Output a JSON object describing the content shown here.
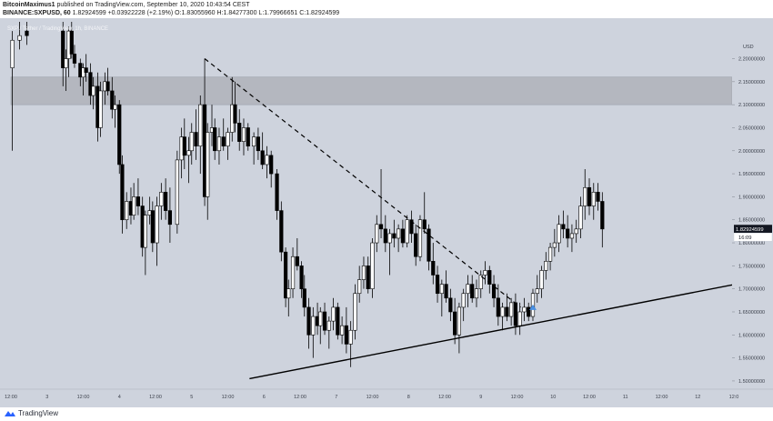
{
  "header": {
    "author": "BitcoinMaximus1",
    "published_text": "published on TradingView.com, September 10, 2020 10:43:54 CEST",
    "symbol": "BINANCE:SXPUSD, 60",
    "last": "1.82924599",
    "change": "+0.03922228 (+2.19%)",
    "o_label": "O:",
    "o_value": "1.83055960",
    "h_label": "H:",
    "h_value": "1.84277300",
    "l_label": "L:",
    "l_value": "1.79966651",
    "c_label": "C:",
    "c_value": "1.82924599"
  },
  "legend_text": "SXP / Tether / TradingView, 1h, BINANCE",
  "footer": {
    "brand": "TradingView"
  },
  "colors": {
    "background": "#ced3dd",
    "candle": "#000000",
    "zone": "#b4b7bf",
    "price_label_bg": "#131722",
    "marker": "#4a90e2"
  },
  "chart_data": {
    "type": "candlestick",
    "x_axis": {
      "ticks": [
        "12:00",
        "3",
        "12:00",
        "4",
        "12:00",
        "5",
        "12:00",
        "6",
        "12:00",
        "7",
        "12:00",
        "8",
        "12:00",
        "9",
        "12:00",
        "10",
        "12:00",
        "11",
        "12:00",
        "12",
        "12:0"
      ]
    },
    "y_axis": {
      "range": [
        1.49,
        2.28
      ],
      "ticks": [
        "2.20000000",
        "2.15000000",
        "2.10000000",
        "2.05000000",
        "2.00000000",
        "1.95000000",
        "1.90000000",
        "1.85000000",
        "1.80000000",
        "1.75000000",
        "1.70000000",
        "1.65000000",
        "1.60000000",
        "1.55000000",
        "1.50000000"
      ],
      "unit": "USD"
    },
    "current_price": {
      "value": 1.82924599,
      "label": "1.82924599",
      "countdown": "16:09"
    },
    "resistance_zone": {
      "y_low": 2.1,
      "y_high": 2.16
    },
    "descending_trendline": {
      "start": {
        "day": 5.18,
        "price": 2.2
      },
      "end": {
        "day": 9.55,
        "price": 1.66
      },
      "style": "dashed"
    },
    "ascending_trendline": {
      "start": {
        "day": 5.8,
        "price": 1.505
      },
      "end": {
        "day": 12.85,
        "price": 1.72
      },
      "style": "solid"
    },
    "breakout_marker": {
      "day": 9.72,
      "price": 1.66
    },
    "candles": [
      {
        "t": 2.52,
        "o": 2.18,
        "h": 2.26,
        "l": 2.0,
        "c": 2.24
      },
      {
        "t": 2.62,
        "o": 2.24,
        "h": 2.28,
        "l": 2.22,
        "c": 2.25
      },
      {
        "t": 2.72,
        "o": 2.26,
        "h": 2.28,
        "l": 2.23,
        "c": 2.25
      },
      {
        "t": 3.22,
        "o": 2.26,
        "h": 2.28,
        "l": 2.14,
        "c": 2.18
      },
      {
        "t": 3.26,
        "o": 2.18,
        "h": 2.22,
        "l": 2.13,
        "c": 2.2
      },
      {
        "t": 3.3,
        "o": 2.2,
        "h": 2.27,
        "l": 2.16,
        "c": 2.26
      },
      {
        "t": 3.34,
        "o": 2.26,
        "h": 2.28,
        "l": 2.2,
        "c": 2.21
      },
      {
        "t": 3.38,
        "o": 2.21,
        "h": 2.23,
        "l": 2.18,
        "c": 2.19
      },
      {
        "t": 3.46,
        "o": 2.19,
        "h": 2.2,
        "l": 2.14,
        "c": 2.16
      },
      {
        "t": 3.5,
        "o": 2.16,
        "h": 2.19,
        "l": 2.12,
        "c": 2.18
      },
      {
        "t": 3.54,
        "o": 2.18,
        "h": 2.21,
        "l": 2.15,
        "c": 2.17
      },
      {
        "t": 3.6,
        "o": 2.17,
        "h": 2.19,
        "l": 2.1,
        "c": 2.12
      },
      {
        "t": 3.64,
        "o": 2.12,
        "h": 2.16,
        "l": 2.09,
        "c": 2.14
      },
      {
        "t": 3.7,
        "o": 2.14,
        "h": 2.17,
        "l": 2.02,
        "c": 2.05
      },
      {
        "t": 3.74,
        "o": 2.05,
        "h": 2.15,
        "l": 2.03,
        "c": 2.13
      },
      {
        "t": 3.8,
        "o": 2.13,
        "h": 2.17,
        "l": 2.1,
        "c": 2.15
      },
      {
        "t": 3.84,
        "o": 2.15,
        "h": 2.18,
        "l": 2.12,
        "c": 2.13
      },
      {
        "t": 3.9,
        "o": 2.13,
        "h": 2.16,
        "l": 2.07,
        "c": 2.09
      },
      {
        "t": 3.94,
        "o": 2.09,
        "h": 2.12,
        "l": 2.05,
        "c": 2.1
      },
      {
        "t": 4.0,
        "o": 2.1,
        "h": 2.11,
        "l": 1.95,
        "c": 1.97
      },
      {
        "t": 4.04,
        "o": 1.97,
        "h": 1.99,
        "l": 1.82,
        "c": 1.85
      },
      {
        "t": 4.1,
        "o": 1.85,
        "h": 1.91,
        "l": 1.83,
        "c": 1.89
      },
      {
        "t": 4.16,
        "o": 1.89,
        "h": 1.92,
        "l": 1.84,
        "c": 1.86
      },
      {
        "t": 4.2,
        "o": 1.86,
        "h": 1.93,
        "l": 1.85,
        "c": 1.9
      },
      {
        "t": 4.26,
        "o": 1.9,
        "h": 1.94,
        "l": 1.86,
        "c": 1.88
      },
      {
        "t": 4.32,
        "o": 1.88,
        "h": 1.9,
        "l": 1.77,
        "c": 1.79
      },
      {
        "t": 4.36,
        "o": 1.79,
        "h": 1.87,
        "l": 1.73,
        "c": 1.86
      },
      {
        "t": 4.42,
        "o": 1.86,
        "h": 1.9,
        "l": 1.84,
        "c": 1.87
      },
      {
        "t": 4.46,
        "o": 1.87,
        "h": 1.89,
        "l": 1.78,
        "c": 1.8
      },
      {
        "t": 4.52,
        "o": 1.8,
        "h": 1.9,
        "l": 1.75,
        "c": 1.88
      },
      {
        "t": 4.58,
        "o": 1.88,
        "h": 1.93,
        "l": 1.85,
        "c": 1.91
      },
      {
        "t": 4.64,
        "o": 1.91,
        "h": 1.94,
        "l": 1.85,
        "c": 1.87
      },
      {
        "t": 4.7,
        "o": 1.87,
        "h": 1.92,
        "l": 1.8,
        "c": 1.84
      },
      {
        "t": 4.8,
        "o": 1.84,
        "h": 2.0,
        "l": 1.82,
        "c": 1.98
      },
      {
        "t": 4.86,
        "o": 1.98,
        "h": 2.05,
        "l": 1.94,
        "c": 2.03
      },
      {
        "t": 4.9,
        "o": 2.03,
        "h": 2.07,
        "l": 1.96,
        "c": 1.99
      },
      {
        "t": 4.96,
        "o": 1.99,
        "h": 2.03,
        "l": 1.93,
        "c": 2.0
      },
      {
        "t": 5.0,
        "o": 2.0,
        "h": 2.06,
        "l": 1.97,
        "c": 2.04
      },
      {
        "t": 5.06,
        "o": 2.04,
        "h": 2.09,
        "l": 1.98,
        "c": 2.01
      },
      {
        "t": 5.12,
        "o": 2.01,
        "h": 2.12,
        "l": 1.95,
        "c": 2.1
      },
      {
        "t": 5.18,
        "o": 2.1,
        "h": 2.2,
        "l": 1.88,
        "c": 1.9
      },
      {
        "t": 5.22,
        "o": 1.9,
        "h": 2.06,
        "l": 1.85,
        "c": 2.04
      },
      {
        "t": 5.28,
        "o": 2.04,
        "h": 2.1,
        "l": 2.01,
        "c": 2.05
      },
      {
        "t": 5.32,
        "o": 2.05,
        "h": 2.07,
        "l": 1.98,
        "c": 2.0
      },
      {
        "t": 5.38,
        "o": 2.0,
        "h": 2.05,
        "l": 1.97,
        "c": 2.03
      },
      {
        "t": 5.44,
        "o": 2.03,
        "h": 2.07,
        "l": 2.0,
        "c": 2.01
      },
      {
        "t": 5.5,
        "o": 2.01,
        "h": 2.05,
        "l": 1.98,
        "c": 2.04
      },
      {
        "t": 5.56,
        "o": 2.04,
        "h": 2.16,
        "l": 2.02,
        "c": 2.1
      },
      {
        "t": 5.6,
        "o": 2.1,
        "h": 2.15,
        "l": 2.04,
        "c": 2.06
      },
      {
        "t": 5.66,
        "o": 2.06,
        "h": 2.09,
        "l": 2.0,
        "c": 2.02
      },
      {
        "t": 5.72,
        "o": 2.02,
        "h": 2.07,
        "l": 1.99,
        "c": 2.05
      },
      {
        "t": 5.78,
        "o": 2.05,
        "h": 2.06,
        "l": 2.0,
        "c": 2.01
      },
      {
        "t": 5.86,
        "o": 2.01,
        "h": 2.04,
        "l": 1.97,
        "c": 2.03
      },
      {
        "t": 5.92,
        "o": 2.03,
        "h": 2.05,
        "l": 1.98,
        "c": 2.0
      },
      {
        "t": 5.98,
        "o": 2.0,
        "h": 2.04,
        "l": 1.96,
        "c": 1.97
      },
      {
        "t": 6.04,
        "o": 1.97,
        "h": 2.01,
        "l": 1.94,
        "c": 1.99
      },
      {
        "t": 6.1,
        "o": 1.99,
        "h": 2.0,
        "l": 1.92,
        "c": 1.95
      },
      {
        "t": 6.18,
        "o": 1.95,
        "h": 1.96,
        "l": 1.85,
        "c": 1.87
      },
      {
        "t": 6.24,
        "o": 1.87,
        "h": 1.89,
        "l": 1.76,
        "c": 1.78
      },
      {
        "t": 6.3,
        "o": 1.78,
        "h": 1.79,
        "l": 1.66,
        "c": 1.68
      },
      {
        "t": 6.34,
        "o": 1.68,
        "h": 1.72,
        "l": 1.64,
        "c": 1.7
      },
      {
        "t": 6.4,
        "o": 1.7,
        "h": 1.79,
        "l": 1.68,
        "c": 1.77
      },
      {
        "t": 6.46,
        "o": 1.77,
        "h": 1.81,
        "l": 1.74,
        "c": 1.75
      },
      {
        "t": 6.52,
        "o": 1.75,
        "h": 1.76,
        "l": 1.68,
        "c": 1.7
      },
      {
        "t": 6.56,
        "o": 1.7,
        "h": 1.73,
        "l": 1.64,
        "c": 1.66
      },
      {
        "t": 6.62,
        "o": 1.66,
        "h": 1.68,
        "l": 1.57,
        "c": 1.6
      },
      {
        "t": 6.68,
        "o": 1.6,
        "h": 1.66,
        "l": 1.55,
        "c": 1.64
      },
      {
        "t": 6.74,
        "o": 1.64,
        "h": 1.67,
        "l": 1.6,
        "c": 1.62
      },
      {
        "t": 6.78,
        "o": 1.62,
        "h": 1.66,
        "l": 1.58,
        "c": 1.65
      },
      {
        "t": 6.84,
        "o": 1.65,
        "h": 1.67,
        "l": 1.6,
        "c": 1.61
      },
      {
        "t": 6.9,
        "o": 1.61,
        "h": 1.64,
        "l": 1.57,
        "c": 1.63
      },
      {
        "t": 6.96,
        "o": 1.63,
        "h": 1.68,
        "l": 1.61,
        "c": 1.66
      },
      {
        "t": 7.02,
        "o": 1.66,
        "h": 1.67,
        "l": 1.59,
        "c": 1.6
      },
      {
        "t": 7.08,
        "o": 1.6,
        "h": 1.64,
        "l": 1.58,
        "c": 1.62
      },
      {
        "t": 7.14,
        "o": 1.62,
        "h": 1.66,
        "l": 1.56,
        "c": 1.58
      },
      {
        "t": 7.2,
        "o": 1.58,
        "h": 1.63,
        "l": 1.53,
        "c": 1.61
      },
      {
        "t": 7.26,
        "o": 1.61,
        "h": 1.71,
        "l": 1.59,
        "c": 1.69
      },
      {
        "t": 7.32,
        "o": 1.69,
        "h": 1.75,
        "l": 1.67,
        "c": 1.72
      },
      {
        "t": 7.38,
        "o": 1.72,
        "h": 1.77,
        "l": 1.7,
        "c": 1.75
      },
      {
        "t": 7.44,
        "o": 1.75,
        "h": 1.77,
        "l": 1.69,
        "c": 1.7
      },
      {
        "t": 7.5,
        "o": 1.7,
        "h": 1.81,
        "l": 1.68,
        "c": 1.8
      },
      {
        "t": 7.56,
        "o": 1.8,
        "h": 1.86,
        "l": 1.78,
        "c": 1.84
      },
      {
        "t": 7.62,
        "o": 1.84,
        "h": 1.96,
        "l": 1.81,
        "c": 1.83
      },
      {
        "t": 7.68,
        "o": 1.83,
        "h": 1.86,
        "l": 1.78,
        "c": 1.8
      },
      {
        "t": 7.74,
        "o": 1.8,
        "h": 1.83,
        "l": 1.73,
        "c": 1.82
      },
      {
        "t": 7.8,
        "o": 1.82,
        "h": 1.85,
        "l": 1.79,
        "c": 1.81
      },
      {
        "t": 7.86,
        "o": 1.81,
        "h": 1.84,
        "l": 1.78,
        "c": 1.83
      },
      {
        "t": 7.92,
        "o": 1.83,
        "h": 1.85,
        "l": 1.79,
        "c": 1.8
      },
      {
        "t": 7.98,
        "o": 1.8,
        "h": 1.86,
        "l": 1.79,
        "c": 1.85
      },
      {
        "t": 8.04,
        "o": 1.85,
        "h": 1.87,
        "l": 1.8,
        "c": 1.82
      },
      {
        "t": 8.1,
        "o": 1.82,
        "h": 1.84,
        "l": 1.75,
        "c": 1.77
      },
      {
        "t": 8.16,
        "o": 1.77,
        "h": 1.86,
        "l": 1.76,
        "c": 1.85
      },
      {
        "t": 8.22,
        "o": 1.85,
        "h": 1.91,
        "l": 1.82,
        "c": 1.83
      },
      {
        "t": 8.28,
        "o": 1.83,
        "h": 1.84,
        "l": 1.74,
        "c": 1.76
      },
      {
        "t": 8.34,
        "o": 1.76,
        "h": 1.8,
        "l": 1.71,
        "c": 1.73
      },
      {
        "t": 8.4,
        "o": 1.73,
        "h": 1.75,
        "l": 1.67,
        "c": 1.69
      },
      {
        "t": 8.46,
        "o": 1.69,
        "h": 1.72,
        "l": 1.64,
        "c": 1.71
      },
      {
        "t": 8.52,
        "o": 1.71,
        "h": 1.74,
        "l": 1.67,
        "c": 1.68
      },
      {
        "t": 8.58,
        "o": 1.68,
        "h": 1.7,
        "l": 1.63,
        "c": 1.65
      },
      {
        "t": 8.64,
        "o": 1.65,
        "h": 1.68,
        "l": 1.58,
        "c": 1.6
      },
      {
        "t": 8.7,
        "o": 1.6,
        "h": 1.67,
        "l": 1.56,
        "c": 1.66
      },
      {
        "t": 8.76,
        "o": 1.66,
        "h": 1.7,
        "l": 1.63,
        "c": 1.69
      },
      {
        "t": 8.82,
        "o": 1.69,
        "h": 1.73,
        "l": 1.66,
        "c": 1.71
      },
      {
        "t": 8.88,
        "o": 1.71,
        "h": 1.73,
        "l": 1.67,
        "c": 1.68
      },
      {
        "t": 8.94,
        "o": 1.68,
        "h": 1.72,
        "l": 1.66,
        "c": 1.7
      },
      {
        "t": 9.0,
        "o": 1.7,
        "h": 1.74,
        "l": 1.68,
        "c": 1.73
      },
      {
        "t": 9.06,
        "o": 1.73,
        "h": 1.76,
        "l": 1.71,
        "c": 1.74
      },
      {
        "t": 9.12,
        "o": 1.74,
        "h": 1.75,
        "l": 1.69,
        "c": 1.71
      },
      {
        "t": 9.18,
        "o": 1.71,
        "h": 1.73,
        "l": 1.66,
        "c": 1.68
      },
      {
        "t": 9.24,
        "o": 1.68,
        "h": 1.71,
        "l": 1.62,
        "c": 1.64
      },
      {
        "t": 9.3,
        "o": 1.64,
        "h": 1.67,
        "l": 1.61,
        "c": 1.66
      },
      {
        "t": 9.36,
        "o": 1.66,
        "h": 1.69,
        "l": 1.63,
        "c": 1.64
      },
      {
        "t": 9.42,
        "o": 1.64,
        "h": 1.68,
        "l": 1.62,
        "c": 1.67
      },
      {
        "t": 9.48,
        "o": 1.67,
        "h": 1.69,
        "l": 1.6,
        "c": 1.62
      },
      {
        "t": 9.54,
        "o": 1.62,
        "h": 1.67,
        "l": 1.6,
        "c": 1.65
      },
      {
        "t": 9.6,
        "o": 1.65,
        "h": 1.68,
        "l": 1.63,
        "c": 1.66
      },
      {
        "t": 9.66,
        "o": 1.66,
        "h": 1.67,
        "l": 1.63,
        "c": 1.64
      },
      {
        "t": 9.72,
        "o": 1.64,
        "h": 1.7,
        "l": 1.63,
        "c": 1.69
      },
      {
        "t": 9.78,
        "o": 1.69,
        "h": 1.73,
        "l": 1.67,
        "c": 1.7
      },
      {
        "t": 9.84,
        "o": 1.7,
        "h": 1.75,
        "l": 1.68,
        "c": 1.74
      },
      {
        "t": 9.9,
        "o": 1.74,
        "h": 1.78,
        "l": 1.72,
        "c": 1.76
      },
      {
        "t": 9.96,
        "o": 1.76,
        "h": 1.8,
        "l": 1.74,
        "c": 1.79
      },
      {
        "t": 10.02,
        "o": 1.79,
        "h": 1.83,
        "l": 1.77,
        "c": 1.8
      },
      {
        "t": 10.08,
        "o": 1.8,
        "h": 1.86,
        "l": 1.78,
        "c": 1.84
      },
      {
        "t": 10.14,
        "o": 1.84,
        "h": 1.87,
        "l": 1.81,
        "c": 1.83
      },
      {
        "t": 10.2,
        "o": 1.83,
        "h": 1.86,
        "l": 1.79,
        "c": 1.81
      },
      {
        "t": 10.26,
        "o": 1.81,
        "h": 1.84,
        "l": 1.78,
        "c": 1.82
      },
      {
        "t": 10.32,
        "o": 1.82,
        "h": 1.85,
        "l": 1.8,
        "c": 1.83
      },
      {
        "t": 10.38,
        "o": 1.83,
        "h": 1.9,
        "l": 1.81,
        "c": 1.88
      },
      {
        "t": 10.44,
        "o": 1.88,
        "h": 1.96,
        "l": 1.85,
        "c": 1.92
      },
      {
        "t": 10.5,
        "o": 1.92,
        "h": 1.94,
        "l": 1.86,
        "c": 1.88
      },
      {
        "t": 10.56,
        "o": 1.88,
        "h": 1.93,
        "l": 1.85,
        "c": 1.91
      },
      {
        "t": 10.62,
        "o": 1.91,
        "h": 1.93,
        "l": 1.87,
        "c": 1.89
      },
      {
        "t": 10.68,
        "o": 1.89,
        "h": 1.91,
        "l": 1.79,
        "c": 1.83
      }
    ]
  }
}
